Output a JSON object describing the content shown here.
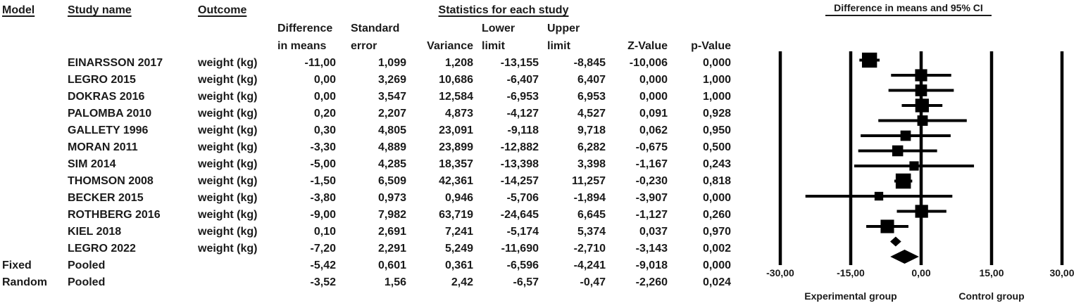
{
  "colors": {
    "text": "#1a1a1a",
    "marker": "#000000",
    "background": "#ffffff"
  },
  "table": {
    "headers": {
      "model": "Model",
      "study_name": "Study name",
      "outcome": "Outcome",
      "stats_group": "Statistics for each study",
      "diff_line1": "Difference",
      "diff_line2": "in means",
      "se_line1": "Standard",
      "se_line2": "error",
      "variance": "Variance",
      "lower_line1": "Lower",
      "lower_line2": "limit",
      "upper_line1": "Upper",
      "upper_line2": "limit",
      "z_value": "Z-Value",
      "p_value": "p-Value"
    },
    "rows": [
      {
        "model": "",
        "study": "EINARSSON 2017",
        "outcome": "weight (kg)",
        "diff": "-11,00",
        "se": "1,099",
        "variance": "1,208",
        "lower": "-13,155",
        "upper": "-8,845",
        "z": "-10,006",
        "p": "0,000"
      },
      {
        "model": "",
        "study": "LEGRO 2015",
        "outcome": "weight (kg)",
        "diff": "0,00",
        "se": "3,269",
        "variance": "10,686",
        "lower": "-6,407",
        "upper": "6,407",
        "z": "0,000",
        "p": "1,000"
      },
      {
        "model": "",
        "study": "DOKRAS 2016",
        "outcome": "weight (kg)",
        "diff": "0,00",
        "se": "3,547",
        "variance": "12,584",
        "lower": "-6,953",
        "upper": "6,953",
        "z": "0,000",
        "p": "1,000"
      },
      {
        "model": "",
        "study": "PALOMBA 2010",
        "outcome": "weight (kg)",
        "diff": "0,20",
        "se": "2,207",
        "variance": "4,873",
        "lower": "-4,127",
        "upper": "4,527",
        "z": "0,091",
        "p": "0,928"
      },
      {
        "model": "",
        "study": "GALLETY 1996",
        "outcome": "weight (kg)",
        "diff": "0,30",
        "se": "4,805",
        "variance": "23,091",
        "lower": "-9,118",
        "upper": "9,718",
        "z": "0,062",
        "p": "0,950"
      },
      {
        "model": "",
        "study": "MORAN 2011",
        "outcome": "weight (kg)",
        "diff": "-3,30",
        "se": "4,889",
        "variance": "23,899",
        "lower": "-12,882",
        "upper": "6,282",
        "z": "-0,675",
        "p": "0,500"
      },
      {
        "model": "",
        "study": "SIM 2014",
        "outcome": "weight (kg)",
        "diff": "-5,00",
        "se": "4,285",
        "variance": "18,357",
        "lower": "-13,398",
        "upper": "3,398",
        "z": "-1,167",
        "p": "0,243"
      },
      {
        "model": "",
        "study": "THOMSON 2008",
        "outcome": "weight (kg)",
        "diff": "-1,50",
        "se": "6,509",
        "variance": "42,361",
        "lower": "-14,257",
        "upper": "11,257",
        "z": "-0,230",
        "p": "0,818"
      },
      {
        "model": "",
        "study": "BECKER 2015",
        "outcome": "weight (kg)",
        "diff": "-3,80",
        "se": "0,973",
        "variance": "0,946",
        "lower": "-5,706",
        "upper": "-1,894",
        "z": "-3,907",
        "p": "0,000"
      },
      {
        "model": "",
        "study": "ROTHBERG 2016",
        "outcome": "weight (kg)",
        "diff": "-9,00",
        "se": "7,982",
        "variance": "63,719",
        "lower": "-24,645",
        "upper": "6,645",
        "z": "-1,127",
        "p": "0,260"
      },
      {
        "model": "",
        "study": "KIEL 2018",
        "outcome": "weight (kg)",
        "diff": "0,10",
        "se": "2,691",
        "variance": "7,241",
        "lower": "-5,174",
        "upper": "5,374",
        "z": "0,037",
        "p": "0,970"
      },
      {
        "model": "",
        "study": "LEGRO 2022",
        "outcome": "weight (kg)",
        "diff": "-7,20",
        "se": "2,291",
        "variance": "5,249",
        "lower": "-11,690",
        "upper": "-2,710",
        "z": "-3,143",
        "p": "0,002"
      },
      {
        "model": "Fixed",
        "study": "Pooled",
        "outcome": "",
        "diff": "-5,42",
        "se": "0,601",
        "variance": "0,361",
        "lower": "-6,596",
        "upper": "-4,241",
        "z": "-9,018",
        "p": "0,000"
      },
      {
        "model": "Random",
        "study": "Pooled",
        "outcome": "",
        "diff": "-3,52",
        "se": "1,56",
        "variance": "2,42",
        "lower": "-6,57",
        "upper": "-0,47",
        "z": "-2,260",
        "p": "0,024"
      }
    ]
  },
  "plot": {
    "title": "Difference in means and 95% CI",
    "x_tick_labels": [
      "-30,00",
      "-15,00",
      "0,00",
      "15,00",
      "30,00"
    ],
    "group_left": "Experimental group",
    "group_right": "Control group"
  },
  "chart_data": {
    "type": "scatter",
    "subtype": "forest-plot",
    "title": "Difference in means and 95% CI",
    "xlabel_left": "Experimental group",
    "xlabel_right": "Control group",
    "xlim": [
      -30,
      30
    ],
    "x_ticks": [
      -30,
      -15,
      0,
      15,
      30
    ],
    "grid": "vertical-lines-at-ticks",
    "points": [
      {
        "study": "EINARSSON 2017",
        "diff": -11.0,
        "lower": -13.155,
        "upper": -8.845,
        "variance": 1.208,
        "marker": "square"
      },
      {
        "study": "LEGRO 2015",
        "diff": 0.0,
        "lower": -6.407,
        "upper": 6.407,
        "variance": 10.686,
        "marker": "square"
      },
      {
        "study": "DOKRAS 2016",
        "diff": 0.0,
        "lower": -6.953,
        "upper": 6.953,
        "variance": 12.584,
        "marker": "square"
      },
      {
        "study": "PALOMBA 2010",
        "diff": 0.2,
        "lower": -4.127,
        "upper": 4.527,
        "variance": 4.873,
        "marker": "square"
      },
      {
        "study": "GALLETY 1996",
        "diff": 0.3,
        "lower": -9.118,
        "upper": 9.718,
        "variance": 23.091,
        "marker": "square"
      },
      {
        "study": "MORAN 2011",
        "diff": -3.3,
        "lower": -12.882,
        "upper": 6.282,
        "variance": 23.899,
        "marker": "square"
      },
      {
        "study": "SIM 2014",
        "diff": -5.0,
        "lower": -13.398,
        "upper": 3.398,
        "variance": 18.357,
        "marker": "square"
      },
      {
        "study": "THOMSON 2008",
        "diff": -1.5,
        "lower": -14.257,
        "upper": 11.257,
        "variance": 42.361,
        "marker": "square"
      },
      {
        "study": "BECKER 2015",
        "diff": -3.8,
        "lower": -5.706,
        "upper": -1.894,
        "variance": 0.946,
        "marker": "square"
      },
      {
        "study": "ROTHBERG 2016",
        "diff": -9.0,
        "lower": -24.645,
        "upper": 6.645,
        "variance": 63.719,
        "marker": "square"
      },
      {
        "study": "KIEL 2018",
        "diff": 0.1,
        "lower": -5.174,
        "upper": 5.374,
        "variance": 7.241,
        "marker": "square"
      },
      {
        "study": "LEGRO 2022",
        "diff": -7.2,
        "lower": -11.69,
        "upper": -2.71,
        "variance": 5.249,
        "marker": "square"
      },
      {
        "study": "Pooled (Fixed)",
        "diff": -5.42,
        "lower": -6.596,
        "upper": -4.241,
        "variance": 0.361,
        "marker": "diamond-small"
      },
      {
        "study": "Pooled (Random)",
        "diff": -3.52,
        "lower": -6.57,
        "upper": -0.47,
        "variance": 2.42,
        "marker": "diamond-large"
      }
    ]
  }
}
